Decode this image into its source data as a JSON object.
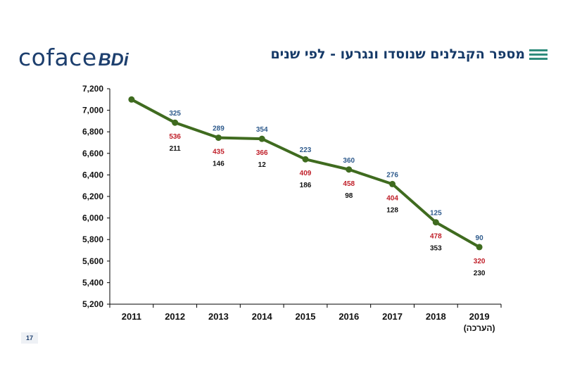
{
  "header": {
    "logo_text": "coface",
    "logo_suffix": "BDi",
    "title": "מספר הקבלנים שנוסדו ונגרעו - לפי שנים"
  },
  "footer": {
    "page_number": "17"
  },
  "colors": {
    "line": "#3f6b1f",
    "marker": "#3f6b1f",
    "label_blue": "#2e5a8c",
    "label_red": "#c0202a",
    "label_black": "#111111",
    "accent": "#2f8c7c"
  },
  "chart_data": {
    "type": "line",
    "x": [
      "2011",
      "2012",
      "2013",
      "2014",
      "2015",
      "2016",
      "2017",
      "2018",
      "2019"
    ],
    "x_tick_sublabels": [
      "",
      "",
      "",
      "",
      "",
      "",
      "",
      "",
      "(הערכה)"
    ],
    "values": [
      7100,
      6885,
      6745,
      6735,
      6545,
      6450,
      6315,
      5960,
      5730
    ],
    "yticks": [
      5200,
      5400,
      5600,
      5800,
      6000,
      6200,
      6400,
      6600,
      6800,
      7000,
      7200
    ],
    "ytick_labels": [
      "5,200",
      "5,400",
      "5,600",
      "5,800",
      "6,000",
      "6,200",
      "6,400",
      "6,600",
      "6,800",
      "7,000",
      "7,200"
    ],
    "ylim": [
      5200,
      7200
    ],
    "annotations_blue": [
      "",
      "325",
      "289",
      "354",
      "223",
      "360",
      "276",
      "125",
      "90"
    ],
    "annotations_red": [
      "",
      "536",
      "435",
      "366",
      "409",
      "458",
      "404",
      "478",
      "320"
    ],
    "annotations_black": [
      "",
      "211",
      "146",
      "12",
      "186",
      "98",
      "128",
      "353",
      "230"
    ],
    "title": "",
    "xlabel": "",
    "ylabel": "",
    "grid": false
  }
}
